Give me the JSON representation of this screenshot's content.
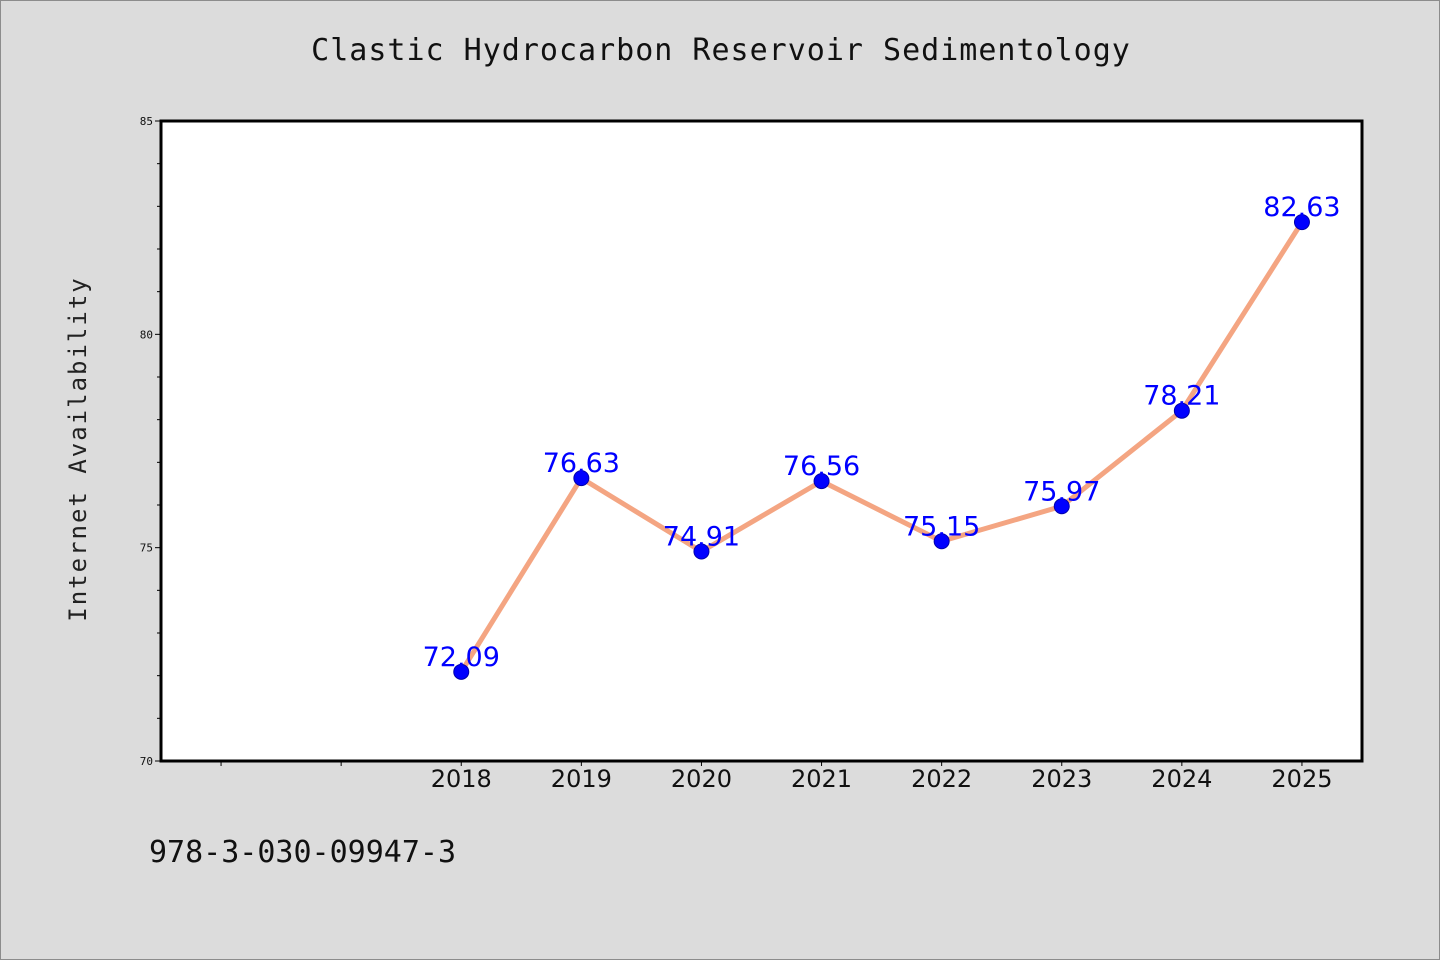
{
  "chart_data": {
    "type": "line",
    "title": "Clastic Hydrocarbon Reservoir Sedimentology",
    "xlabel": "",
    "ylabel": "Internet Availability",
    "categories": [
      "2018",
      "2019",
      "2020",
      "2021",
      "2022",
      "2023",
      "2024",
      "2025"
    ],
    "x_range": [
      2015.5,
      2025.5
    ],
    "series": [
      {
        "values": [
          72.09,
          76.63,
          74.91,
          76.56,
          75.15,
          75.97,
          78.21,
          82.63
        ],
        "data_labels": [
          "72.09",
          "76.63",
          "74.91",
          "76.56",
          "75.15",
          "75.97",
          "78.21",
          "82.63"
        ],
        "line_color": "#f4a582",
        "marker_color": "#0000ff"
      }
    ],
    "ylim": [
      70,
      85
    ],
    "y_ticks": [
      "70",
      "75",
      "80",
      "85"
    ],
    "grid": false,
    "legend": "none"
  },
  "footer_text": "978-3-030-09947-3",
  "colors": {
    "background": "#dcdcdc",
    "plot_area": "#ffffff",
    "line": "#f4a582",
    "marker": "#0000ff",
    "data_label": "#0000ff"
  }
}
